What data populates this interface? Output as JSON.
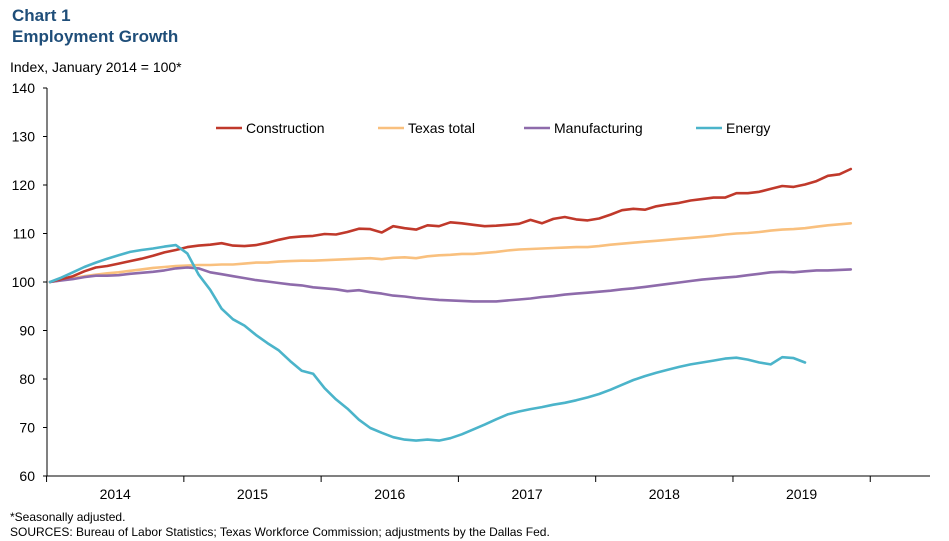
{
  "header": {
    "chart_label": "Chart 1",
    "title": "Employment Growth",
    "subtitle": "Index,  January 2014 = 100*"
  },
  "footer": {
    "note": "*Seasonally adjusted.",
    "sources": "SOURCES: Bureau of Labor Statistics; Texas Workforce Commission; adjustments by the Dallas Fed."
  },
  "chart_data": {
    "type": "line",
    "title": "Employment Growth",
    "ylabel": "Index,  January 2014 = 100*",
    "ylim": [
      60,
      140
    ],
    "yticks": [
      60,
      70,
      80,
      90,
      100,
      110,
      120,
      130,
      140
    ],
    "xlim": [
      0,
      71
    ],
    "year_labels": [
      "2014",
      "2015",
      "2016",
      "2017",
      "2018",
      "2019"
    ],
    "grid": false,
    "legend_position": "top",
    "series": [
      {
        "name": "Construction",
        "color": "#c0392b",
        "values": [
          100,
          100.6,
          101.2,
          102.2,
          103.0,
          103.3,
          103.8,
          104.3,
          104.8,
          105.4,
          106.1,
          106.6,
          107.2,
          107.5,
          107.7,
          108.0,
          107.5,
          107.4,
          107.6,
          108.1,
          108.7,
          109.2,
          109.4,
          109.5,
          109.9,
          109.8,
          110.3,
          111.0,
          110.9,
          110.2,
          111.5,
          111.1,
          110.8,
          111.7,
          111.5,
          112.3,
          112.1,
          111.8,
          111.5,
          111.6,
          111.8,
          112.0,
          112.8,
          112.1,
          113.0,
          113.4,
          112.9,
          112.7,
          113.1,
          113.9,
          114.8,
          115.1,
          114.9,
          115.6,
          116.0,
          116.3,
          116.8,
          117.1,
          117.4,
          117.4,
          118.3,
          118.3,
          118.6,
          119.2,
          119.8,
          119.6,
          120.1,
          120.8,
          121.9,
          122.2,
          123.3
        ]
      },
      {
        "name": "Texas total",
        "color": "#f9c07e",
        "values": [
          100,
          100.4,
          100.8,
          101.2,
          101.5,
          101.8,
          102.0,
          102.3,
          102.6,
          102.9,
          103.1,
          103.3,
          103.4,
          103.5,
          103.5,
          103.6,
          103.6,
          103.8,
          104.0,
          104.0,
          104.2,
          104.3,
          104.4,
          104.4,
          104.5,
          104.6,
          104.7,
          104.8,
          104.9,
          104.7,
          105.0,
          105.1,
          104.9,
          105.3,
          105.5,
          105.6,
          105.8,
          105.8,
          106.0,
          106.2,
          106.5,
          106.7,
          106.8,
          106.9,
          107.0,
          107.1,
          107.2,
          107.2,
          107.4,
          107.7,
          107.9,
          108.1,
          108.3,
          108.5,
          108.7,
          108.9,
          109.1,
          109.3,
          109.5,
          109.8,
          110.0,
          110.1,
          110.3,
          110.6,
          110.8,
          110.9,
          111.1,
          111.4,
          111.7,
          111.9,
          112.1
        ]
      },
      {
        "name": "Manufacturing",
        "color": "#8e6bab",
        "values": [
          100,
          100.3,
          100.6,
          101.0,
          101.3,
          101.3,
          101.4,
          101.7,
          101.9,
          102.1,
          102.4,
          102.8,
          103.0,
          102.8,
          102.0,
          101.6,
          101.2,
          100.8,
          100.4,
          100.1,
          99.8,
          99.5,
          99.3,
          98.9,
          98.7,
          98.5,
          98.1,
          98.3,
          97.9,
          97.6,
          97.2,
          97.0,
          96.7,
          96.5,
          96.3,
          96.2,
          96.1,
          96.0,
          96.0,
          96.0,
          96.2,
          96.4,
          96.6,
          96.9,
          97.1,
          97.4,
          97.6,
          97.8,
          98.0,
          98.2,
          98.5,
          98.7,
          99.0,
          99.3,
          99.6,
          99.9,
          100.2,
          100.5,
          100.7,
          100.9,
          101.1,
          101.4,
          101.7,
          102.0,
          102.1,
          102.0,
          102.2,
          102.4,
          102.4,
          102.5,
          102.6
        ]
      },
      {
        "name": "Energy",
        "color": "#4bb4ca",
        "values": [
          100,
          100.9,
          102.0,
          103.1,
          104.0,
          104.8,
          105.5,
          106.2,
          106.6,
          106.9,
          107.3,
          107.6,
          105.9,
          101.5,
          98.4,
          94.5,
          92.3,
          91.0,
          89.1,
          87.4,
          85.9,
          83.7,
          81.7,
          81.1,
          78.1,
          75.8,
          73.9,
          71.6,
          69.9,
          68.9,
          68.0,
          67.5,
          67.3,
          67.5,
          67.3,
          67.8,
          68.6,
          69.6,
          70.6,
          71.7,
          72.7,
          73.3,
          73.8,
          74.2,
          74.7,
          75.1,
          75.6,
          76.2,
          76.9,
          77.8,
          78.8,
          79.8,
          80.6,
          81.3,
          81.9,
          82.5,
          83.0,
          83.4,
          83.8,
          84.2,
          84.4,
          84.0,
          83.4,
          83.0,
          84.5,
          84.3,
          83.4
        ]
      }
    ]
  }
}
